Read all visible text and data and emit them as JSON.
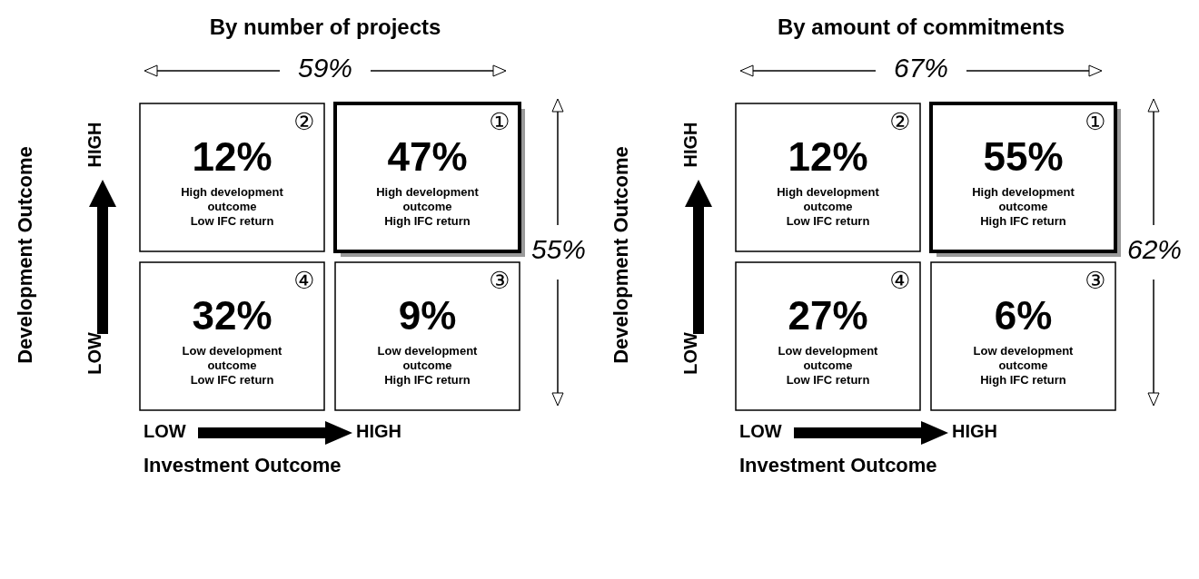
{
  "chart_data": [
    {
      "type": "heatmap",
      "title": "By number of projects",
      "xlabel": "Investment Outcome",
      "ylabel": "Development Outcome",
      "categories": [
        "LOW",
        "HIGH"
      ],
      "y_categories": [
        "HIGH",
        "LOW"
      ],
      "cells": [
        [
          12,
          47
        ],
        [
          32,
          9
        ]
      ],
      "cell_labels": [
        [
          "12%",
          "47%"
        ],
        [
          "32%",
          "9%"
        ]
      ],
      "annotations": [
        "59%",
        "55%",
        "②",
        "High development\noutcome\nLow IFC return",
        "①",
        "High development\noutcome\nHigh IFC return",
        "④",
        "Low development\noutcome\nLow IFC return",
        "③",
        "Low development\noutcome\nHigh IFC return"
      ]
    },
    {
      "type": "heatmap",
      "title": "By amount of commitments",
      "xlabel": "Investment Outcome",
      "ylabel": "Development Outcome",
      "categories": [
        "LOW",
        "HIGH"
      ],
      "y_categories": [
        "HIGH",
        "LOW"
      ],
      "cells": [
        [
          12,
          55
        ],
        [
          27,
          6
        ]
      ],
      "cell_labels": [
        [
          "12%",
          "55%"
        ],
        [
          "27%",
          "6%"
        ]
      ],
      "annotations": [
        "67%",
        "62%",
        "②",
        "High development\noutcome\nLow IFC return",
        "①",
        "High development\noutcome\nHigh IFC return",
        "④",
        "Low development\noutcome\nLow IFC return",
        "③",
        "Low development\noutcome\nHigh IFC return"
      ]
    }
  ]
}
